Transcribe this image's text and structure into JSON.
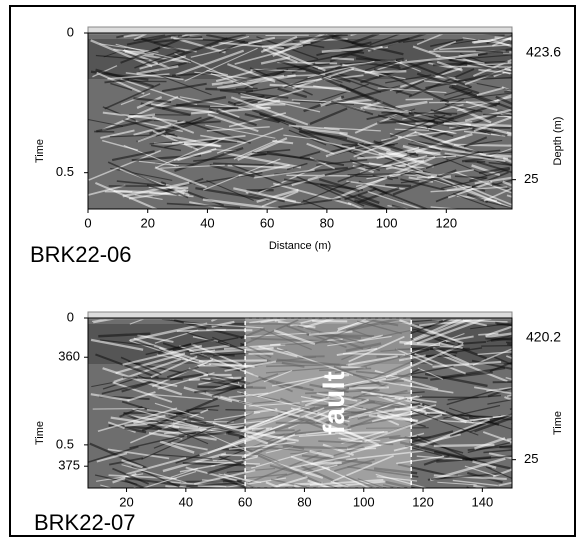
{
  "chart_data": [
    {
      "type": "radargram",
      "title": "BRK22-06",
      "xlabel": "Distance (m)",
      "ylabel": "Time",
      "y2label": "Depth (m)",
      "xlim": [
        0,
        142
      ],
      "xticks": [
        0,
        20,
        40,
        60,
        80,
        100,
        120
      ],
      "ylim": [
        0,
        0.63
      ],
      "yticks": [
        0,
        0.5
      ],
      "y2lim": [
        0,
        30
      ],
      "y2ticks": [
        25
      ],
      "top_label": "423.6"
    },
    {
      "type": "radargram",
      "title": "BRK22-07",
      "ylabel": "Time",
      "y2label": "Time",
      "xlim": [
        7,
        150
      ],
      "xticks": [
        20,
        40,
        60,
        80,
        100,
        120,
        140
      ],
      "ylim": [
        0,
        0.67
      ],
      "yticks": [
        0,
        0.5
      ],
      "elev_lim": [
        354.6,
        378
      ],
      "elev_ticks": [
        360,
        375
      ],
      "y2lim": [
        0,
        30
      ],
      "y2ticks": [
        25
      ],
      "top_label": "420.2",
      "fault_zone": {
        "label": "fault",
        "x": [
          60,
          116
        ]
      }
    }
  ]
}
